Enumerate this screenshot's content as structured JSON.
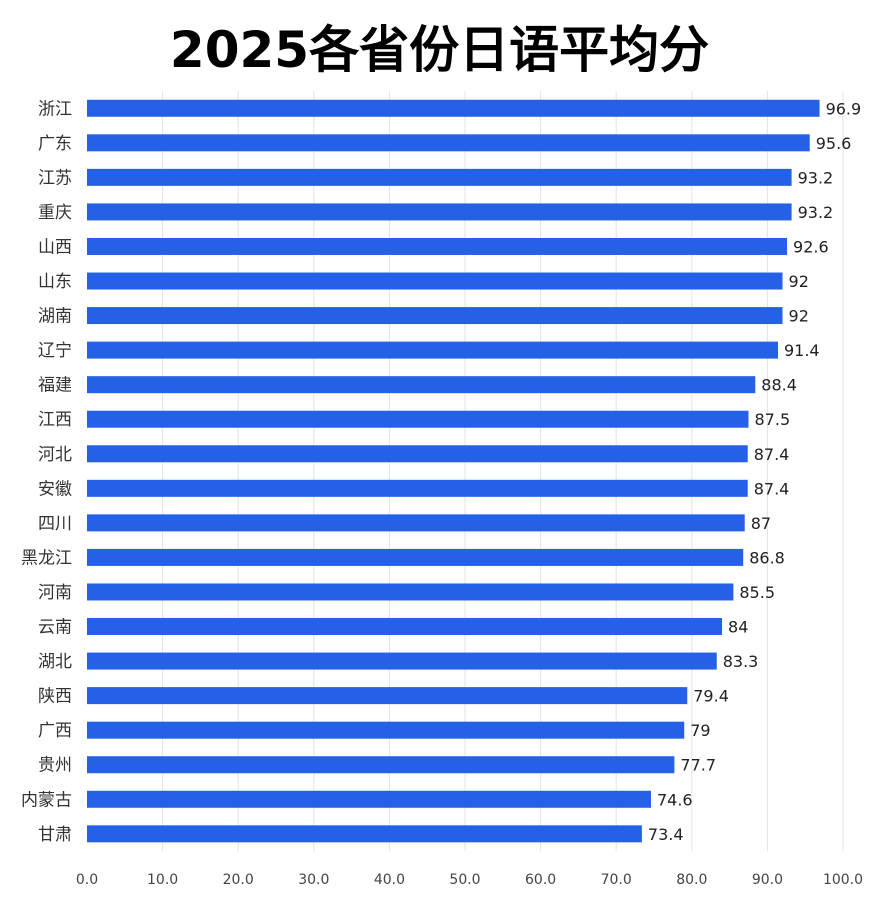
{
  "chart_data": {
    "type": "bar",
    "orientation": "horizontal",
    "title": "2025各省份日语平均分",
    "xlabel": "",
    "ylabel": "",
    "xlim": [
      0,
      100
    ],
    "grid": true,
    "bar_color": "#2461e6",
    "categories": [
      "浙江",
      "广东",
      "江苏",
      "重庆",
      "山西",
      "山东",
      "湖南",
      "辽宁",
      "福建",
      "江西",
      "河北",
      "安徽",
      "四川",
      "黑龙江",
      "河南",
      "云南",
      "湖北",
      "陕西",
      "广西",
      "贵州",
      "内蒙古",
      "甘肃"
    ],
    "values": [
      96.9,
      95.6,
      93.2,
      93.2,
      92.6,
      92,
      92,
      91.4,
      88.4,
      87.5,
      87.4,
      87.4,
      87,
      86.8,
      85.5,
      84,
      83.3,
      79.4,
      79,
      77.7,
      74.6,
      73.4
    ],
    "value_labels": [
      "96.9",
      "95.6",
      "93.2",
      "93.2",
      "92.6",
      "92",
      "92",
      "91.4",
      "88.4",
      "87.5",
      "87.4",
      "87.4",
      "87",
      "86.8",
      "85.5",
      "84",
      "83.3",
      "79.4",
      "79",
      "77.7",
      "74.6",
      "73.4"
    ],
    "x_ticks": [
      0,
      10,
      20,
      30,
      40,
      50,
      60,
      70,
      80,
      90,
      100
    ],
    "x_tick_labels": [
      "0.0",
      "10.0",
      "20.0",
      "30.0",
      "40.0",
      "50.0",
      "60.0",
      "70.0",
      "80.0",
      "90.0",
      "100.0"
    ]
  }
}
